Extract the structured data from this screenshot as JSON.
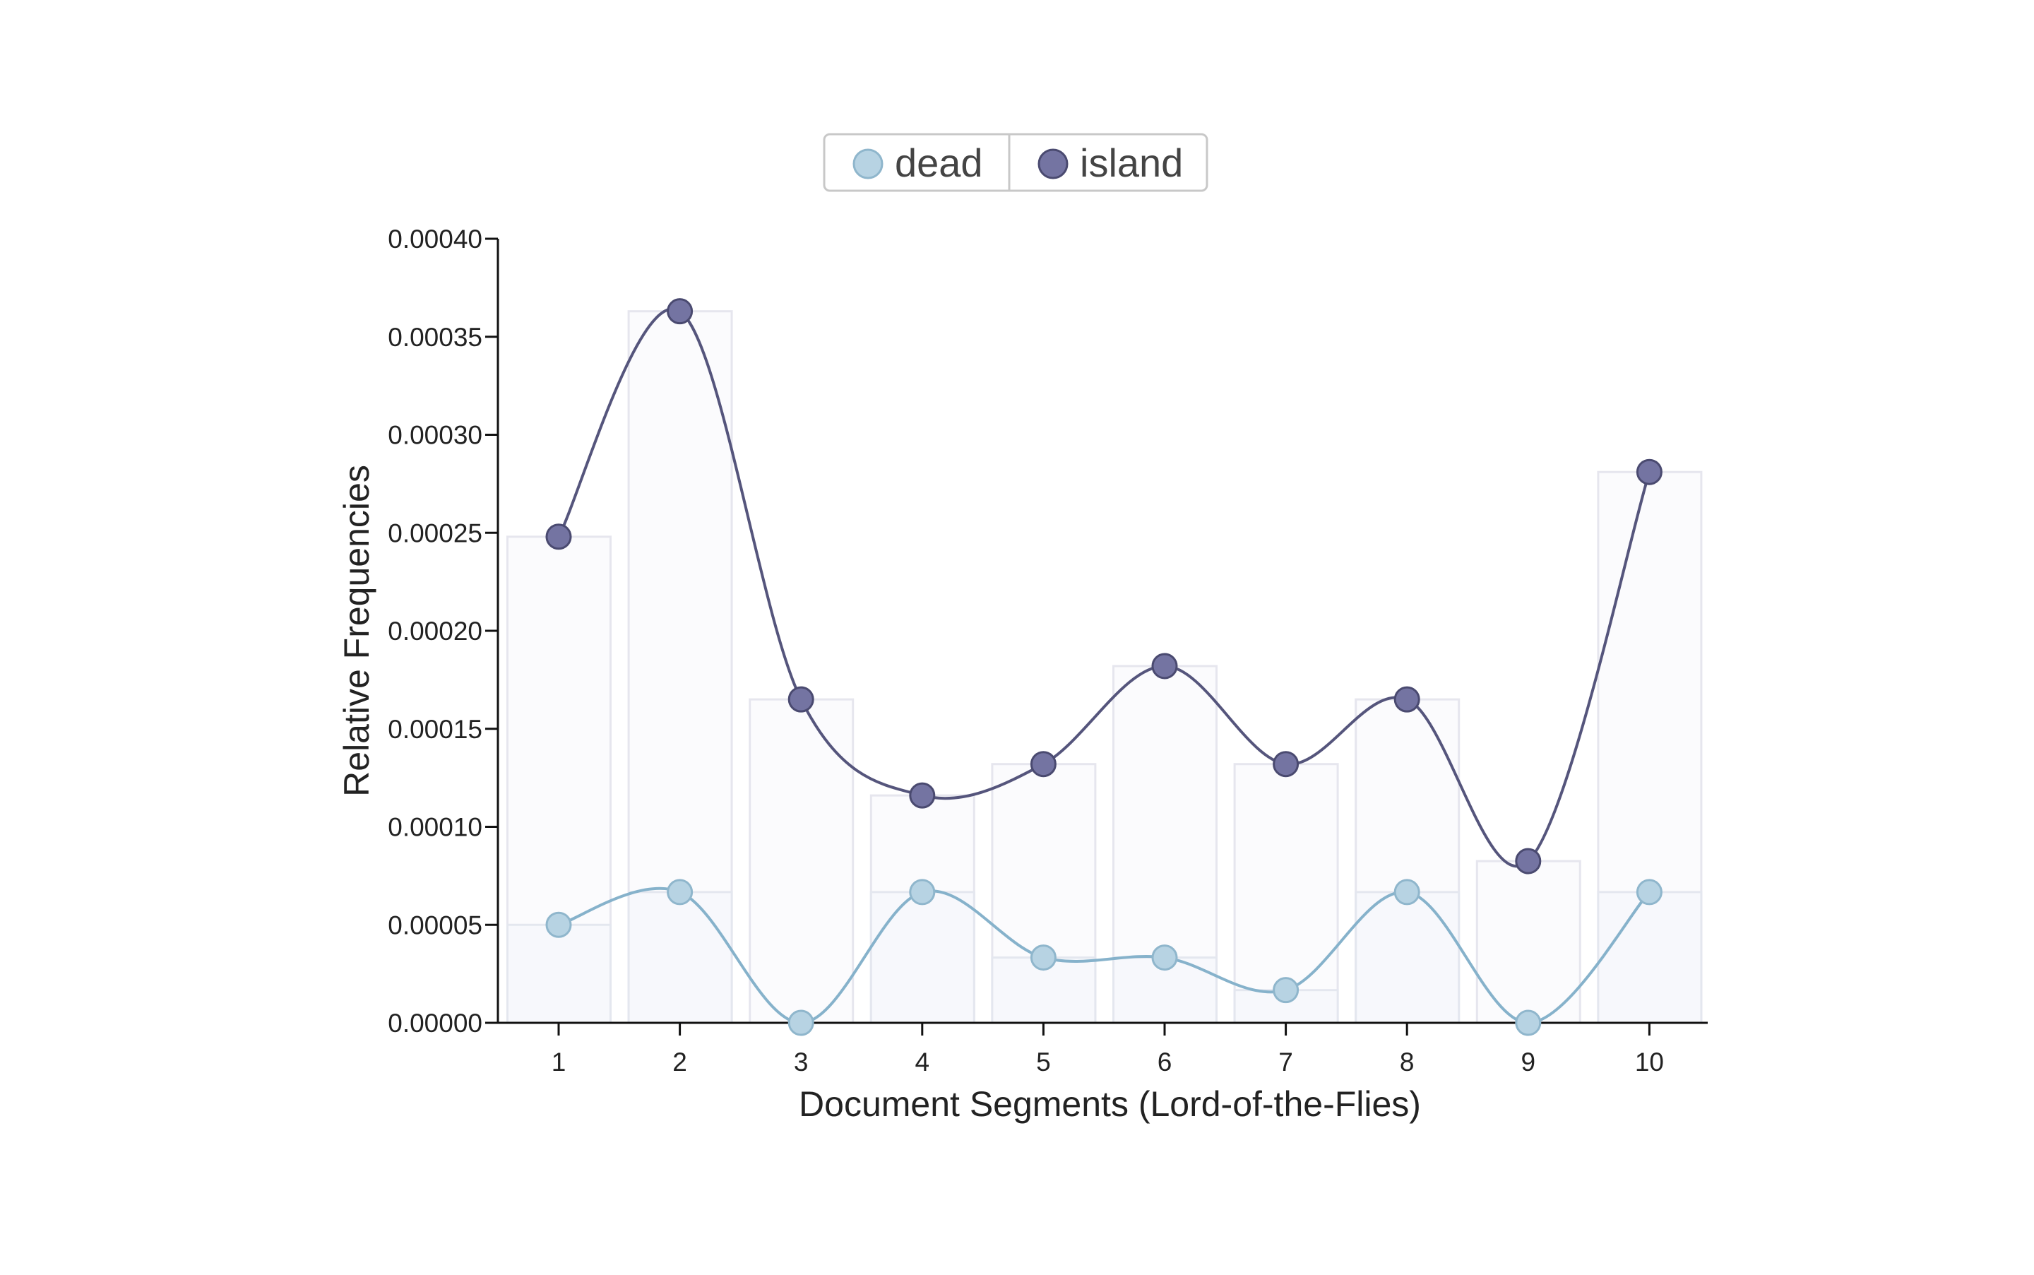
{
  "chart_data": {
    "type": "line",
    "categories": [
      "1",
      "2",
      "3",
      "4",
      "5",
      "6",
      "7",
      "8",
      "9",
      "10"
    ],
    "series": [
      {
        "name": "dead",
        "values": [
          5e-05,
          6.67e-05,
          0.0,
          6.67e-05,
          3.33e-05,
          3.33e-05,
          1.67e-05,
          6.67e-05,
          0.0,
          6.67e-05
        ],
        "color": "#b7d3e3",
        "line_color": "#86b2cb",
        "stroke": "#8fb6cc"
      },
      {
        "name": "island",
        "values": [
          0.000248,
          0.000363,
          0.000165,
          0.000116,
          0.000132,
          0.000182,
          0.000132,
          0.000165,
          8.25e-05,
          0.000281
        ],
        "color": "#7474a2",
        "line_color": "#55557c",
        "stroke": "#4a4a70"
      }
    ],
    "xlabel": "Document Segments (Lord-of-the-Flies)",
    "ylabel": "Relative Frequencies",
    "ylim": [
      0,
      0.0004
    ],
    "yticks": [
      "0.00000",
      "0.00005",
      "0.00010",
      "0.00015",
      "0.00020",
      "0.00025",
      "0.00030",
      "0.00035",
      "0.00040"
    ],
    "ytick_values": [
      0,
      5e-05,
      0.0001,
      0.00015,
      0.0002,
      0.00025,
      0.0003,
      0.00035,
      0.0004
    ],
    "legend_position": "top-center",
    "grid": false,
    "bars": true
  }
}
